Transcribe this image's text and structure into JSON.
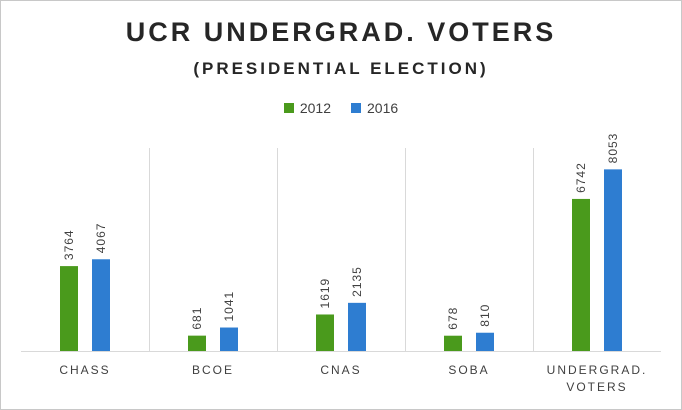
{
  "chart_data": {
    "type": "bar",
    "title": "UCR UNDERGRAD. VOTERS",
    "subtitle": "(PRESIDENTIAL ELECTION)",
    "categories": [
      "CHASS",
      "BCOE",
      "CNAS",
      "SOBA",
      "UNDERGRAD. VOTERS"
    ],
    "series": [
      {
        "name": "2012",
        "color": "#4a9a1c",
        "values": [
          3764,
          681,
          1619,
          678,
          6742
        ]
      },
      {
        "name": "2016",
        "color": "#2e7dd1",
        "values": [
          4067,
          1041,
          2135,
          810,
          8053
        ]
      }
    ],
    "ylim": [
      0,
      9000
    ],
    "grid": false,
    "legend_position": "top"
  }
}
